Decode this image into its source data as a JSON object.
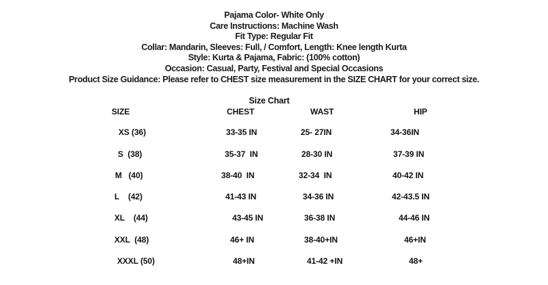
{
  "info_lines": [
    "Pajama Color- White Only",
    "Care Instructions: Machine Wash",
    "Fit Type: Regular Fit",
    "Collar: Mandarin, Sleeves: Full, / Comfort, Length: Knee length Kurta",
    "Style: Kurta & Pajama, Fabric: (100% cotton)",
    "Occasion: Casual, Party, Festival and Special Occasions",
    "Product Size Guidance: Please refer to CHEST size measurement in the SIZE CHART for your correct size."
  ],
  "size_chart": {
    "title": "Size Chart",
    "headers": [
      "SIZE",
      "CHEST",
      "WAST",
      "HIP"
    ],
    "rows": [
      [
        "XS (36)",
        "33-35 IN",
        "25- 27IN",
        "34-36IN"
      ],
      [
        "S  (38)",
        "35-37  IN",
        "28-30 IN",
        "37-39 IN"
      ],
      [
        "M   (40)",
        "38-40  IN",
        "32-34  IN",
        "40-42 IN"
      ],
      [
        "L    (42)",
        "41-43 IN",
        "34-36 IN",
        "42-43.5 IN"
      ],
      [
        "XL    (44)",
        "43-45 IN",
        "36-38 IN",
        "44-46 IN"
      ],
      [
        "XXL  (48)",
        "46+ IN",
        "38-40+IN",
        "46+IN"
      ],
      [
        "XXXL (50)",
        "48+IN",
        "41-42 +IN",
        "48+"
      ]
    ]
  }
}
